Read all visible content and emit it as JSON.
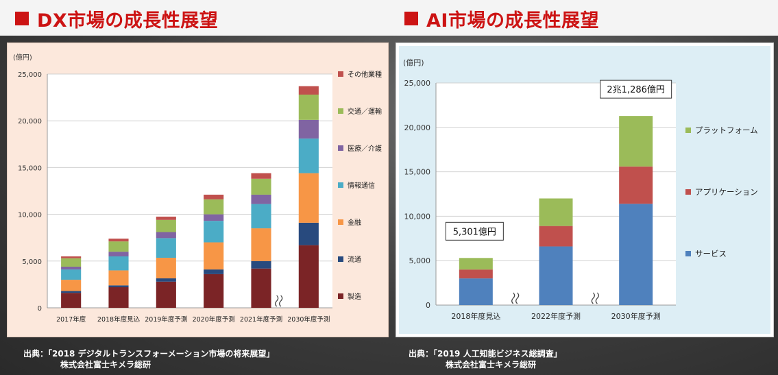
{
  "dx": {
    "title": "DX市場の成長性展望",
    "source_line1": "出典：「2018 デジタルトランスフォーメーション市場の将来展望」",
    "source_line2": "株式会社富士キメラ総研"
  },
  "ai": {
    "title": "AI市場の成長性展望",
    "source_line1": "出典：「2019 人工知能ビジネス総調査」",
    "source_line2": "株式会社富士キメラ総研"
  },
  "chart_data": [
    {
      "type": "bar",
      "stacked": true,
      "unit_label": "(億円)",
      "categories": [
        "2017年度",
        "2018年度見込",
        "2019年度予測",
        "2020年度予測",
        "2021年度予測",
        "2030年度予測"
      ],
      "ylim": [
        0,
        25000
      ],
      "yticks": [
        "0",
        "5,000",
        "10,000",
        "15,000",
        "20,000",
        "25,000"
      ],
      "grid": true,
      "legend_position": "right",
      "axis_break_before_last": true,
      "series": [
        {
          "name": "製造",
          "color": "#7b2426",
          "values": [
            1600,
            2200,
            2800,
            3600,
            4200,
            6700
          ]
        },
        {
          "name": "流通",
          "color": "#284a7e",
          "values": [
            200,
            200,
            350,
            500,
            800,
            2400
          ]
        },
        {
          "name": "金融",
          "color": "#f79646",
          "values": [
            1200,
            1600,
            2200,
            2900,
            3500,
            5300
          ]
        },
        {
          "name": "情報通信",
          "color": "#4bacc6",
          "values": [
            1100,
            1500,
            2100,
            2300,
            2600,
            3700
          ]
        },
        {
          "name": "医療／介護",
          "color": "#8064a2",
          "values": [
            300,
            500,
            650,
            700,
            1000,
            2000
          ]
        },
        {
          "name": "交通／運輸",
          "color": "#9bbb59",
          "values": [
            900,
            1100,
            1300,
            1600,
            1700,
            2700
          ]
        },
        {
          "name": "その他業種",
          "color": "#c0504d",
          "values": [
            200,
            300,
            350,
            500,
            600,
            900
          ]
        }
      ]
    },
    {
      "type": "bar",
      "stacked": true,
      "unit_label": "(億円)",
      "categories": [
        "2018年度見込",
        "2022年度予測",
        "2030年度予測"
      ],
      "ylim": [
        0,
        25000
      ],
      "yticks": [
        "0",
        "5,000",
        "10,000",
        "15,000",
        "20,000",
        "25,000"
      ],
      "grid": true,
      "legend_position": "right",
      "axis_break_between_categories": true,
      "series": [
        {
          "name": "サービス",
          "color": "#4f81bd",
          "values": [
            3000,
            6600,
            11400
          ]
        },
        {
          "name": "アプリケーション",
          "color": "#c0504d",
          "values": [
            1000,
            2300,
            4200
          ]
        },
        {
          "name": "プラットフォーム",
          "color": "#9bbb59",
          "values": [
            1300,
            3100,
            5686
          ]
        }
      ],
      "annotations": [
        {
          "category": "2018年度見込",
          "text": "5,301億円"
        },
        {
          "category": "2030年度予測",
          "text": "2兆1,286億円"
        }
      ]
    }
  ]
}
